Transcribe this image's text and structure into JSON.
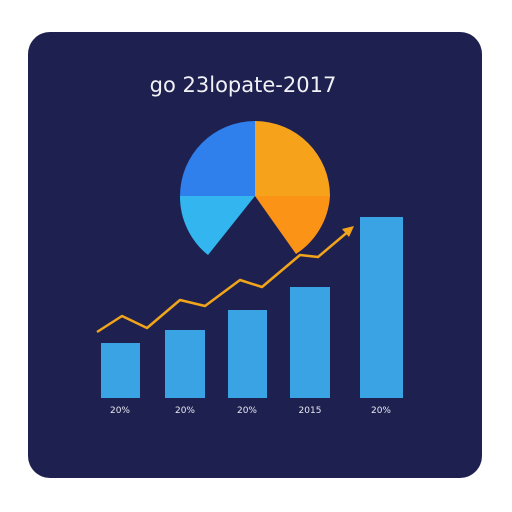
{
  "title": "go 23lopate-2017",
  "bar_labels": [
    "20%",
    "20%",
    "20%",
    "2015",
    "20%"
  ]
}
